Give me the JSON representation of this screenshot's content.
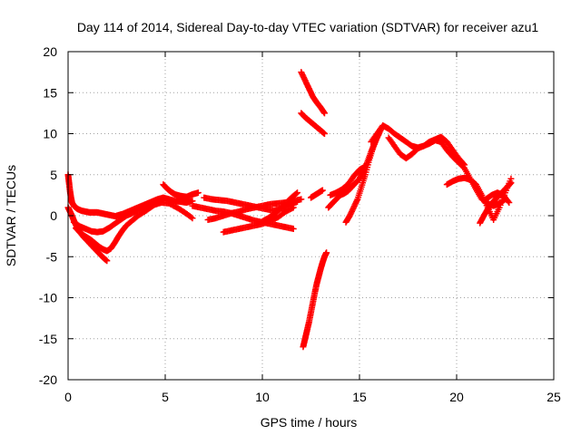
{
  "chart_data": {
    "type": "scatter",
    "title": "Day 114 of 2014, Sidereal Day-to-day VTEC variation (SDTVAR) for receiver azu1",
    "xlabel": "GPS time / hours",
    "ylabel": "SDTVAR / TECUs",
    "xlim": [
      0,
      25
    ],
    "ylim": [
      -20,
      20
    ],
    "xticks": [
      "0",
      "5",
      "10",
      "15",
      "20",
      "25"
    ],
    "yticks": [
      "20",
      "15",
      "10",
      "5",
      "0",
      "-5",
      "-10",
      "-15",
      "-20"
    ],
    "grid": true,
    "marker": "plus",
    "series": [
      {
        "color": "#ff0000",
        "x": [
          0.0,
          0.05,
          0.1,
          0.15,
          0.2,
          0.3,
          0.4,
          0.5,
          0.7,
          0.9,
          1.1,
          1.3,
          1.5,
          1.7,
          1.9,
          2.1,
          2.3,
          2.5
        ],
        "y": [
          5.0,
          4.0,
          3.0,
          2.2,
          1.6,
          1.2,
          1.0,
          0.8,
          0.6,
          0.5,
          0.4,
          0.4,
          0.4,
          0.3,
          0.2,
          0.1,
          0.0,
          -0.1
        ]
      },
      {
        "color": "#ff0000",
        "x": [
          0.0,
          0.1,
          0.2,
          0.3,
          0.4,
          0.5,
          0.6,
          0.8,
          1.0,
          1.2,
          1.4,
          1.6,
          1.8,
          2.0
        ],
        "y": [
          1.0,
          0.5,
          0.0,
          -0.6,
          -1.1,
          -1.6,
          -2.0,
          -2.6,
          -3.1,
          -3.6,
          -4.1,
          -4.6,
          -5.1,
          -5.5
        ]
      },
      {
        "color": "#ff0000",
        "x": [
          0.4,
          0.6,
          0.8,
          1.0,
          1.2,
          1.4,
          1.6,
          1.8,
          2.0,
          2.2,
          2.4,
          2.6,
          2.8,
          3.0,
          3.3,
          3.6,
          4.0,
          4.3,
          4.6,
          4.9
        ],
        "y": [
          -1.5,
          -2.0,
          -2.4,
          -2.7,
          -3.0,
          -3.4,
          -3.8,
          -4.1,
          -4.3,
          -4.0,
          -3.3,
          -2.5,
          -1.8,
          -1.2,
          -0.6,
          0.0,
          0.6,
          1.1,
          1.6,
          2.0
        ]
      },
      {
        "color": "#ff0000",
        "x": [
          0.3,
          0.6,
          0.9,
          1.2,
          1.5,
          1.8,
          2.1,
          2.4,
          2.7,
          3.0,
          3.3,
          3.6,
          4.0,
          4.4,
          4.8,
          5.2,
          5.6,
          6.0,
          6.4
        ],
        "y": [
          -0.8,
          -1.3,
          -1.6,
          -1.9,
          -2.0,
          -1.9,
          -1.5,
          -1.0,
          -0.5,
          0.0,
          0.3,
          0.7,
          1.0,
          1.3,
          1.6,
          1.5,
          1.0,
          0.4,
          -0.3
        ]
      },
      {
        "color": "#ff0000",
        "x": [
          2.5,
          2.8,
          3.1,
          3.4,
          3.7,
          4.0,
          4.3,
          4.6,
          4.9,
          5.2,
          5.5,
          5.8,
          6.1,
          6.4
        ],
        "y": [
          0.0,
          0.2,
          0.5,
          0.8,
          1.1,
          1.4,
          1.7,
          2.0,
          2.2,
          2.0,
          1.8,
          1.7,
          1.6,
          1.8
        ]
      },
      {
        "color": "#ff0000",
        "x": [
          4.9,
          5.1,
          5.3,
          5.5,
          5.8,
          6.1,
          6.4,
          6.7
        ],
        "y": [
          3.8,
          3.3,
          2.9,
          2.6,
          2.4,
          2.3,
          2.6,
          2.8
        ]
      },
      {
        "color": "#ff0000",
        "x": [
          6.4,
          6.8,
          7.2,
          7.6,
          8.0,
          8.4,
          8.8,
          9.2,
          9.6,
          10.0,
          10.4,
          10.8,
          11.2,
          11.6
        ],
        "y": [
          1.2,
          1.0,
          0.8,
          0.6,
          0.5,
          0.3,
          0.0,
          -0.3,
          -0.6,
          -0.8,
          -1.0,
          -1.2,
          -1.4,
          -1.6
        ]
      },
      {
        "color": "#ff0000",
        "x": [
          7.0,
          7.4,
          7.8,
          8.2,
          8.6,
          9.0,
          9.4,
          9.8,
          10.2,
          10.6,
          11.0,
          11.4,
          11.8
        ],
        "y": [
          2.2,
          2.0,
          1.9,
          1.8,
          1.6,
          1.4,
          1.2,
          1.0,
          0.8,
          0.6,
          0.9,
          1.3,
          1.7
        ]
      },
      {
        "color": "#ff0000",
        "x": [
          7.2,
          7.6,
          8.0,
          8.4,
          8.8,
          9.2,
          9.6,
          10.0,
          10.4,
          10.8,
          11.2,
          11.6,
          12.0
        ],
        "y": [
          -0.5,
          -0.3,
          0.0,
          0.3,
          0.5,
          0.8,
          1.0,
          1.2,
          1.4,
          1.5,
          1.6,
          1.8,
          2.0
        ]
      },
      {
        "color": "#ff0000",
        "x": [
          8.0,
          8.4,
          8.8,
          9.2,
          9.6,
          10.0,
          10.4,
          10.8,
          11.2,
          11.6
        ],
        "y": [
          -2.0,
          -1.8,
          -1.6,
          -1.4,
          -1.2,
          -1.0,
          -0.6,
          -0.2,
          0.5,
          1.0
        ]
      },
      {
        "color": "#ff0000",
        "x": [
          10.0,
          10.3,
          10.6,
          10.9,
          11.2,
          11.5,
          11.8
        ],
        "y": [
          -0.7,
          -0.3,
          0.2,
          0.8,
          1.5,
          2.2,
          2.8
        ]
      },
      {
        "color": "#ff0000",
        "x": [
          12.0,
          12.2,
          12.4,
          12.6,
          12.8,
          13.0,
          13.2
        ],
        "y": [
          17.5,
          16.5,
          15.5,
          14.5,
          13.8,
          13.2,
          12.5
        ]
      },
      {
        "color": "#ff0000",
        "x": [
          12.0,
          12.2,
          12.4,
          12.6,
          12.8,
          13.0,
          13.2
        ],
        "y": [
          12.5,
          12.0,
          11.6,
          11.2,
          10.8,
          10.4,
          10.0
        ]
      },
      {
        "color": "#ff0000",
        "x": [
          12.1,
          12.2,
          12.3,
          12.4,
          12.5,
          12.6,
          12.7,
          12.8,
          12.9,
          13.0,
          13.1,
          13.2,
          13.3
        ],
        "y": [
          -16.0,
          -15.0,
          -14.0,
          -13.0,
          -11.8,
          -10.6,
          -9.4,
          -8.3,
          -7.4,
          -6.5,
          -5.7,
          -5.0,
          -4.5
        ]
      },
      {
        "color": "#ff0000",
        "x": [
          12.5,
          12.7,
          12.9,
          13.1
        ],
        "y": [
          2.2,
          2.5,
          2.8,
          3.1
        ]
      },
      {
        "color": "#ff0000",
        "x": [
          13.4,
          13.6,
          13.8,
          14.0,
          14.2,
          14.4,
          14.6,
          14.8,
          15.0,
          15.2,
          15.4,
          15.6,
          15.8,
          16.0
        ],
        "y": [
          1.0,
          1.5,
          2.0,
          2.5,
          2.7,
          3.0,
          3.5,
          4.0,
          4.5,
          5.5,
          6.5,
          7.8,
          9.0,
          10.0
        ]
      },
      {
        "color": "#ff0000",
        "x": [
          14.3,
          14.5,
          14.7,
          14.9,
          15.1,
          15.3,
          15.5,
          15.7,
          15.9,
          16.1
        ],
        "y": [
          -0.8,
          0.0,
          1.0,
          2.0,
          3.5,
          5.0,
          6.8,
          8.3,
          9.5,
          10.5
        ]
      },
      {
        "color": "#ff0000",
        "x": [
          13.5,
          13.8,
          14.1,
          14.4,
          14.7,
          15.0,
          15.3
        ],
        "y": [
          2.5,
          2.8,
          3.2,
          3.8,
          4.8,
          5.6,
          6.0
        ]
      },
      {
        "color": "#ff0000",
        "x": [
          15.6,
          15.9,
          16.2,
          16.5,
          16.8,
          17.1,
          17.4,
          17.7,
          18.0,
          18.3,
          18.6,
          18.9,
          19.2,
          19.5,
          19.8,
          20.1,
          20.4
        ],
        "y": [
          9.0,
          10.0,
          11.0,
          10.6,
          10.0,
          9.5,
          9.0,
          8.5,
          8.3,
          8.5,
          9.0,
          9.3,
          9.6,
          9.0,
          8.0,
          7.0,
          6.2
        ]
      },
      {
        "color": "#ff0000",
        "x": [
          16.5,
          16.8,
          17.1,
          17.4,
          17.7,
          18.0,
          18.3,
          18.6,
          18.9,
          19.2,
          19.5,
          19.8,
          20.1,
          20.4,
          20.7,
          21.0,
          21.3,
          21.6,
          21.9,
          22.2,
          22.5
        ],
        "y": [
          9.5,
          8.5,
          7.5,
          7.0,
          7.5,
          8.2,
          8.5,
          8.8,
          9.2,
          9.0,
          8.0,
          7.2,
          6.5,
          5.8,
          4.5,
          3.2,
          2.0,
          1.5,
          1.2,
          1.5,
          2.0
        ]
      },
      {
        "color": "#ff0000",
        "x": [
          19.5,
          19.8,
          20.1,
          20.4,
          20.7,
          21.0,
          21.3,
          21.6,
          21.9,
          22.2,
          22.5,
          22.8
        ],
        "y": [
          3.8,
          4.2,
          4.5,
          4.6,
          4.4,
          3.8,
          2.5,
          1.0,
          -0.5,
          1.0,
          2.8,
          4.5
        ]
      },
      {
        "color": "#ff0000",
        "x": [
          21.2,
          21.4,
          21.6,
          21.8,
          22.0,
          22.2,
          22.4,
          22.6,
          22.8
        ],
        "y": [
          -0.9,
          0.0,
          0.8,
          1.5,
          2.0,
          2.5,
          3.0,
          3.5,
          4.0
        ]
      },
      {
        "color": "#ff0000",
        "x": [
          21.5,
          21.8,
          22.1,
          22.4,
          22.7
        ],
        "y": [
          2.0,
          2.5,
          2.8,
          2.5,
          1.6
        ]
      }
    ]
  }
}
